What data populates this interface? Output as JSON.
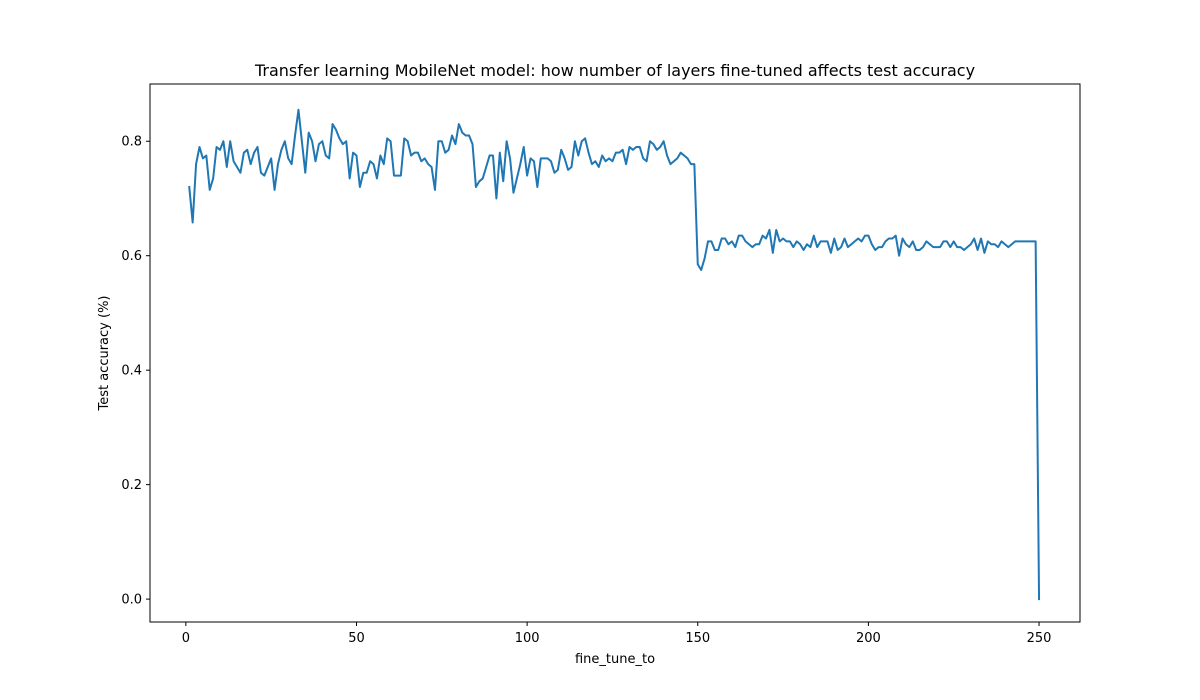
{
  "chart_data": {
    "type": "line",
    "title": "Transfer learning MobileNet model: how number of layers fine-tuned affects test accuracy",
    "xlabel": "fine_tune_to",
    "ylabel": "Test accuracy (%)",
    "xlim": [
      -10.5,
      262
    ],
    "ylim": [
      -0.04,
      0.9
    ],
    "xticks": [
      0,
      50,
      100,
      150,
      200,
      250
    ],
    "xtick_labels": [
      "0",
      "50",
      "100",
      "150",
      "200",
      "250"
    ],
    "yticks": [
      0.0,
      0.2,
      0.4,
      0.6,
      0.8
    ],
    "ytick_labels": [
      "0.0",
      "0.2",
      "0.4",
      "0.6",
      "0.8"
    ],
    "grid": false,
    "legend": "none",
    "series": [
      {
        "color": "#1f77b4",
        "x_start": 1,
        "values": [
          0.72,
          0.658,
          0.76,
          0.79,
          0.77,
          0.775,
          0.715,
          0.735,
          0.79,
          0.785,
          0.8,
          0.755,
          0.8,
          0.765,
          0.755,
          0.745,
          0.78,
          0.785,
          0.76,
          0.78,
          0.79,
          0.745,
          0.74,
          0.755,
          0.77,
          0.715,
          0.76,
          0.785,
          0.8,
          0.77,
          0.76,
          0.81,
          0.855,
          0.8,
          0.745,
          0.815,
          0.8,
          0.765,
          0.795,
          0.8,
          0.775,
          0.77,
          0.83,
          0.82,
          0.805,
          0.795,
          0.8,
          0.735,
          0.78,
          0.775,
          0.72,
          0.745,
          0.745,
          0.765,
          0.76,
          0.735,
          0.775,
          0.76,
          0.805,
          0.8,
          0.74,
          0.74,
          0.74,
          0.805,
          0.8,
          0.775,
          0.78,
          0.78,
          0.765,
          0.77,
          0.76,
          0.755,
          0.715,
          0.8,
          0.8,
          0.78,
          0.785,
          0.81,
          0.795,
          0.83,
          0.815,
          0.81,
          0.81,
          0.795,
          0.72,
          0.73,
          0.735,
          0.755,
          0.775,
          0.775,
          0.7,
          0.78,
          0.73,
          0.8,
          0.77,
          0.71,
          0.735,
          0.76,
          0.79,
          0.74,
          0.77,
          0.765,
          0.72,
          0.77,
          0.77,
          0.77,
          0.765,
          0.745,
          0.75,
          0.785,
          0.77,
          0.75,
          0.755,
          0.8,
          0.775,
          0.8,
          0.805,
          0.78,
          0.76,
          0.765,
          0.755,
          0.775,
          0.765,
          0.77,
          0.765,
          0.78,
          0.78,
          0.785,
          0.76,
          0.79,
          0.785,
          0.79,
          0.79,
          0.77,
          0.765,
          0.8,
          0.795,
          0.785,
          0.79,
          0.8,
          0.775,
          0.76,
          0.765,
          0.77,
          0.78,
          0.775,
          0.77,
          0.76,
          0.76,
          0.585,
          0.575,
          0.595,
          0.625,
          0.625,
          0.61,
          0.61,
          0.63,
          0.63,
          0.62,
          0.625,
          0.615,
          0.635,
          0.635,
          0.625,
          0.62,
          0.615,
          0.62,
          0.62,
          0.635,
          0.63,
          0.645,
          0.605,
          0.645,
          0.625,
          0.63,
          0.625,
          0.625,
          0.615,
          0.625,
          0.62,
          0.61,
          0.62,
          0.615,
          0.635,
          0.615,
          0.625,
          0.625,
          0.625,
          0.605,
          0.63,
          0.61,
          0.615,
          0.63,
          0.615,
          0.62,
          0.625,
          0.63,
          0.625,
          0.635,
          0.635,
          0.62,
          0.61,
          0.615,
          0.615,
          0.625,
          0.63,
          0.63,
          0.635,
          0.6,
          0.63,
          0.62,
          0.615,
          0.625,
          0.61,
          0.61,
          0.615,
          0.625,
          0.62,
          0.615,
          0.615,
          0.615,
          0.625,
          0.625,
          0.615,
          0.625,
          0.615,
          0.615,
          0.61,
          0.615,
          0.62,
          0.63,
          0.61,
          0.63,
          0.605,
          0.625,
          0.62,
          0.62,
          0.615,
          0.625,
          0.62,
          0.615,
          0.62,
          0.625,
          0.625,
          0.625,
          0.625,
          0.625,
          0.625,
          0.625,
          0.0
        ]
      }
    ]
  }
}
